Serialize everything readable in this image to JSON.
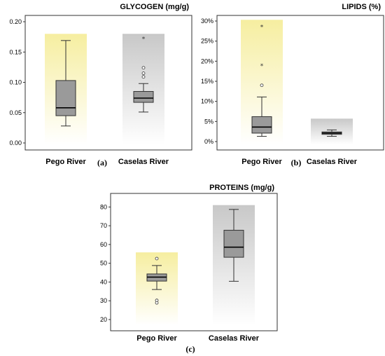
{
  "chart_data": [
    {
      "type": "box",
      "panel_label": "(a)",
      "title": "GLYCOGEN (mg/g)",
      "categories": [
        "Pego River",
        "Caselas River"
      ],
      "ylim": [
        0,
        0.2
      ],
      "yticks": [
        "0.00",
        "0.05",
        "0.10",
        "0.15",
        "0.20"
      ],
      "ytick_values": [
        0,
        0.05,
        0.1,
        0.15,
        0.2
      ],
      "band_colors": [
        "#f6eea0",
        "#c8c8c8"
      ],
      "band_tops": [
        0.18,
        0.18
      ],
      "boxes": [
        {
          "category": "Pego River",
          "min": 0.028,
          "q1": 0.045,
          "median": 0.058,
          "q3": 0.103,
          "max": 0.169,
          "outliers": [],
          "extremes": []
        },
        {
          "category": "Caselas River",
          "min": 0.051,
          "q1": 0.067,
          "median": 0.074,
          "q3": 0.085,
          "max": 0.098,
          "outliers": [
            0.109,
            0.115,
            0.124
          ],
          "extremes": [
            0.173
          ]
        }
      ]
    },
    {
      "type": "box",
      "panel_label": "(b)",
      "title": "LIPIDS (%)",
      "categories": [
        "Pego River",
        "Caselas River"
      ],
      "ylim": [
        0,
        30
      ],
      "yticks": [
        "0%",
        "5%",
        "10%",
        "15%",
        "20%",
        "25%",
        "30%"
      ],
      "ytick_values": [
        0,
        5,
        10,
        15,
        20,
        25,
        30
      ],
      "band_colors": [
        "#f6eea0",
        "#c8c8c8"
      ],
      "band_tops": [
        30.3,
        5.7
      ],
      "boxes": [
        {
          "category": "Pego River",
          "min": 1.3,
          "q1": 2.1,
          "median": 3.6,
          "q3": 6.2,
          "max": 11.1,
          "outliers": [
            14.0
          ],
          "extremes": [
            19.0,
            28.7
          ]
        },
        {
          "category": "Caselas River",
          "min": 1.3,
          "q1": 1.8,
          "median": 2.1,
          "q3": 2.4,
          "max": 2.9,
          "outliers": [],
          "extremes": []
        }
      ]
    },
    {
      "type": "box",
      "panel_label": "(c)",
      "title": "PROTEINS (mg/g)",
      "categories": [
        "Pego River",
        "Caselas River"
      ],
      "ylim": [
        17,
        82
      ],
      "yticks": [
        "20",
        "30",
        "40",
        "50",
        "60",
        "70",
        "80"
      ],
      "ytick_values": [
        20,
        30,
        40,
        50,
        60,
        70,
        80
      ],
      "band_colors": [
        "#f6eea0",
        "#c8c8c8"
      ],
      "band_tops": [
        55.8,
        81.0
      ],
      "boxes": [
        {
          "category": "Pego River",
          "min": 36.0,
          "q1": 40.5,
          "median": 42.6,
          "q3": 44.3,
          "max": 48.8,
          "outliers": [
            52.5,
            30.2,
            28.9
          ],
          "extremes": []
        },
        {
          "category": "Caselas River",
          "min": 40.4,
          "q1": 53.2,
          "median": 58.6,
          "q3": 67.6,
          "max": 78.7,
          "outliers": [],
          "extremes": []
        }
      ]
    }
  ]
}
